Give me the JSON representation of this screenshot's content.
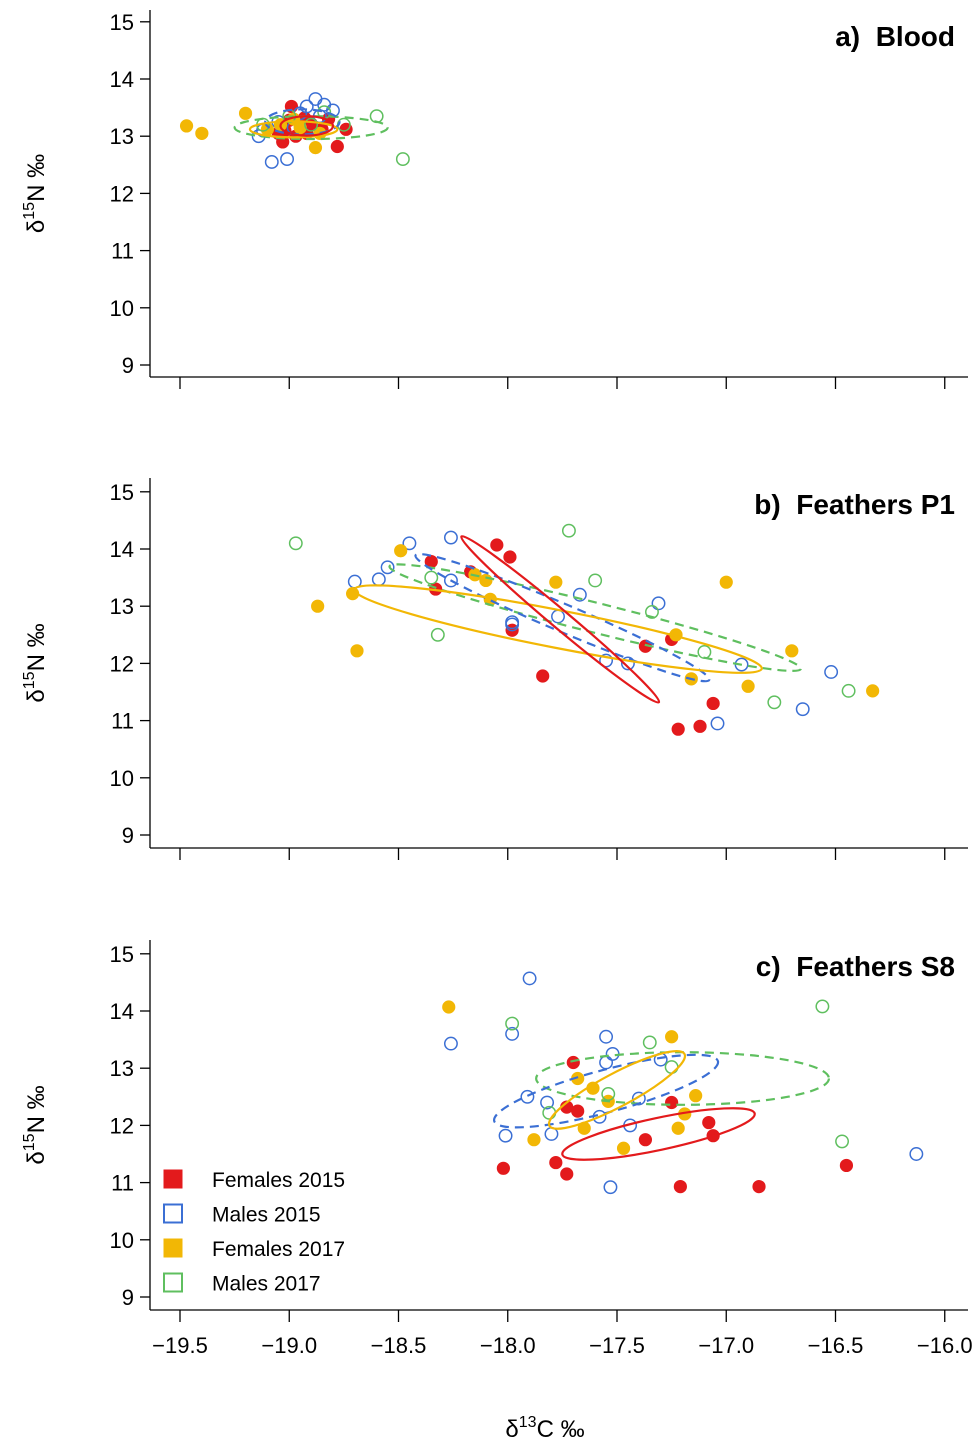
{
  "chart_data": [
    {
      "type": "scatter",
      "title": "a)  Blood",
      "ylabel": "δ15N ‰",
      "ylim": [
        8.8,
        15.3
      ],
      "xlim": [
        -19.63,
        -15.93
      ],
      "yticks": [
        "9",
        "10",
        "11",
        "12",
        "13",
        "14",
        "15"
      ],
      "series": [
        {
          "name": "Females 2015",
          "color": "#e31a1c",
          "style": "filled",
          "points": [
            [
              -18.99,
              13.52
            ],
            [
              -18.93,
              13.32
            ],
            [
              -18.95,
              13.2
            ],
            [
              -19.02,
              13.1
            ],
            [
              -19.05,
              13.05
            ],
            [
              -19.0,
              13.28
            ],
            [
              -18.92,
              13.05
            ],
            [
              -18.9,
              13.22
            ],
            [
              -18.85,
              13.12
            ],
            [
              -19.03,
              12.9
            ],
            [
              -18.78,
              12.82
            ],
            [
              -18.74,
              13.12
            ],
            [
              -18.97,
              13.0
            ],
            [
              -18.82,
              13.3
            ]
          ]
        },
        {
          "name": "Males 2015",
          "color": "#3b6fd4",
          "style": "open",
          "points": [
            [
              -18.88,
              13.65
            ],
            [
              -18.84,
              13.55
            ],
            [
              -18.92,
              13.52
            ],
            [
              -18.8,
              13.45
            ],
            [
              -18.95,
              13.4
            ],
            [
              -19.05,
              13.25
            ],
            [
              -19.12,
              13.1
            ],
            [
              -19.08,
              12.55
            ],
            [
              -19.01,
              12.6
            ],
            [
              -18.86,
              13.35
            ],
            [
              -19.14,
              13.0
            ],
            [
              -18.98,
              13.15
            ]
          ]
        },
        {
          "name": "Females 2017",
          "color": "#f2b705",
          "style": "filled",
          "points": [
            [
              -19.47,
              13.18
            ],
            [
              -19.4,
              13.05
            ],
            [
              -19.2,
              13.4
            ],
            [
              -19.1,
              13.12
            ],
            [
              -18.98,
              13.3
            ],
            [
              -18.88,
              12.8
            ],
            [
              -18.95,
              13.15
            ],
            [
              -18.86,
              13.05
            ],
            [
              -19.04,
              13.2
            ]
          ]
        },
        {
          "name": "Males 2017",
          "color": "#5fbf5f",
          "style": "open",
          "points": [
            [
              -18.6,
              13.35
            ],
            [
              -18.48,
              12.6
            ],
            [
              -18.75,
              13.2
            ],
            [
              -19.12,
              13.2
            ],
            [
              -19.0,
              13.35
            ],
            [
              -18.9,
              13.2
            ],
            [
              -18.84,
              13.42
            ]
          ]
        }
      ],
      "ellipses": [
        {
          "series": "Males 2017",
          "color": "#5fbf5f",
          "dashed": true,
          "cx": -18.9,
          "cy": 13.15,
          "rx": 0.35,
          "ry": 0.2,
          "angle": 0
        },
        {
          "series": "Males 2015",
          "color": "#3b6fd4",
          "dashed": true,
          "cx": -18.94,
          "cy": 13.25,
          "rx": 0.17,
          "ry": 0.22,
          "angle": 0
        },
        {
          "series": "Females 2017",
          "color": "#f2b705",
          "dashed": false,
          "cx": -18.98,
          "cy": 13.12,
          "rx": 0.2,
          "ry": 0.14,
          "angle": 0
        },
        {
          "series": "Females 2015",
          "color": "#e31a1c",
          "dashed": false,
          "cx": -18.92,
          "cy": 13.18,
          "rx": 0.12,
          "ry": 0.17,
          "angle": 0
        }
      ]
    },
    {
      "type": "scatter",
      "title": "b)  Feathers P1",
      "ylabel": "δ15N ‰",
      "ylim": [
        8.8,
        15.3
      ],
      "xlim": [
        -19.63,
        -15.93
      ],
      "yticks": [
        "9",
        "10",
        "11",
        "12",
        "13",
        "14",
        "15"
      ],
      "series": [
        {
          "name": "Females 2015",
          "color": "#e31a1c",
          "style": "filled",
          "points": [
            [
              -18.05,
              14.07
            ],
            [
              -17.99,
              13.86
            ],
            [
              -18.35,
              13.78
            ],
            [
              -18.17,
              13.6
            ],
            [
              -18.33,
              13.3
            ],
            [
              -17.98,
              12.58
            ],
            [
              -17.84,
              11.78
            ],
            [
              -17.37,
              12.3
            ],
            [
              -17.25,
              12.42
            ],
            [
              -17.06,
              11.3
            ],
            [
              -17.12,
              10.9
            ],
            [
              -17.22,
              10.85
            ]
          ]
        },
        {
          "name": "Males 2015",
          "color": "#3b6fd4",
          "style": "open",
          "points": [
            [
              -18.26,
              14.2
            ],
            [
              -18.45,
              14.1
            ],
            [
              -18.55,
              13.68
            ],
            [
              -18.7,
              13.43
            ],
            [
              -18.59,
              13.47
            ],
            [
              -18.26,
              13.45
            ],
            [
              -17.98,
              12.68
            ],
            [
              -17.98,
              12.72
            ],
            [
              -17.77,
              12.82
            ],
            [
              -17.67,
              13.2
            ],
            [
              -17.31,
              13.05
            ],
            [
              -17.55,
              12.05
            ],
            [
              -17.45,
              12.0
            ],
            [
              -16.93,
              11.98
            ],
            [
              -17.04,
              10.95
            ],
            [
              -16.52,
              11.85
            ],
            [
              -16.65,
              11.2
            ]
          ]
        },
        {
          "name": "Females 2017",
          "color": "#f2b705",
          "style": "filled",
          "points": [
            [
              -18.49,
              13.97
            ],
            [
              -18.87,
              13.0
            ],
            [
              -18.71,
              13.22
            ],
            [
              -18.69,
              12.22
            ],
            [
              -18.15,
              13.55
            ],
            [
              -18.1,
              13.45
            ],
            [
              -18.08,
              13.12
            ],
            [
              -17.78,
              13.42
            ],
            [
              -17.23,
              12.5
            ],
            [
              -17.16,
              11.73
            ],
            [
              -17.0,
              13.42
            ],
            [
              -16.9,
              11.6
            ],
            [
              -16.7,
              12.22
            ],
            [
              -16.33,
              11.52
            ]
          ]
        },
        {
          "name": "Males 2017",
          "color": "#5fbf5f",
          "style": "open",
          "points": [
            [
              -18.97,
              14.1
            ],
            [
              -17.72,
              14.32
            ],
            [
              -17.6,
              13.45
            ],
            [
              -17.34,
              12.9
            ],
            [
              -18.35,
              13.5
            ],
            [
              -18.32,
              12.5
            ],
            [
              -16.78,
              11.32
            ],
            [
              -16.44,
              11.52
            ],
            [
              -17.1,
              12.2
            ]
          ]
        }
      ],
      "ellipses": [
        {
          "series": "Males 2017",
          "color": "#5fbf5f",
          "dashed": true,
          "cx": -17.6,
          "cy": 12.8,
          "rx": 0.97,
          "ry": 0.26,
          "angle": 14
        },
        {
          "series": "Males 2015",
          "color": "#3b6fd4",
          "dashed": true,
          "cx": -17.75,
          "cy": 12.8,
          "rx": 0.73,
          "ry": 0.24,
          "angle": 23
        },
        {
          "series": "Females 2017",
          "color": "#f2b705",
          "dashed": false,
          "cx": -17.77,
          "cy": 12.6,
          "rx": 0.95,
          "ry": 0.33,
          "angle": 11
        },
        {
          "series": "Females 2015",
          "color": "#e31a1c",
          "dashed": false,
          "cx": -17.76,
          "cy": 12.77,
          "rx": 0.59,
          "ry": 0.16,
          "angle": 40
        }
      ]
    },
    {
      "type": "scatter",
      "title": "c)  Feathers S8",
      "ylabel": "δ15N ‰",
      "xlabel": "δ13C ‰",
      "ylim": [
        8.8,
        15.3
      ],
      "xlim": [
        -19.63,
        -15.93
      ],
      "xticks": [
        "−19.5",
        "−19.0",
        "−18.5",
        "−18.0",
        "−17.5",
        "−17.0",
        "−16.5",
        "−16.0"
      ],
      "yticks": [
        "9",
        "10",
        "11",
        "12",
        "13",
        "14",
        "15"
      ],
      "series": [
        {
          "name": "Females 2015",
          "color": "#e31a1c",
          "style": "filled",
          "points": [
            [
              -17.7,
              13.1
            ],
            [
              -17.73,
              12.32
            ],
            [
              -17.68,
              12.25
            ],
            [
              -17.78,
              11.35
            ],
            [
              -17.73,
              11.15
            ],
            [
              -17.37,
              11.75
            ],
            [
              -17.25,
              12.4
            ],
            [
              -17.08,
              12.05
            ],
            [
              -17.06,
              11.82
            ],
            [
              -16.85,
              10.93
            ],
            [
              -17.21,
              10.93
            ],
            [
              -18.02,
              11.25
            ],
            [
              -16.45,
              11.3
            ]
          ]
        },
        {
          "name": "Males 2015",
          "color": "#3b6fd4",
          "style": "open",
          "points": [
            [
              -17.9,
              14.57
            ],
            [
              -17.98,
              13.6
            ],
            [
              -18.26,
              13.43
            ],
            [
              -17.55,
              13.55
            ],
            [
              -17.52,
              13.25
            ],
            [
              -17.55,
              13.1
            ],
            [
              -17.3,
              13.15
            ],
            [
              -17.91,
              12.5
            ],
            [
              -17.82,
              12.4
            ],
            [
              -17.58,
              12.15
            ],
            [
              -17.4,
              12.47
            ],
            [
              -17.44,
              12.0
            ],
            [
              -17.8,
              11.85
            ],
            [
              -18.01,
              11.82
            ],
            [
              -17.53,
              10.92
            ],
            [
              -16.13,
              11.5
            ]
          ]
        },
        {
          "name": "Females 2017",
          "color": "#f2b705",
          "style": "filled",
          "points": [
            [
              -18.27,
              14.07
            ],
            [
              -17.25,
              13.55
            ],
            [
              -17.68,
              12.82
            ],
            [
              -17.61,
              12.65
            ],
            [
              -17.54,
              12.42
            ],
            [
              -17.65,
              11.95
            ],
            [
              -17.47,
              11.6
            ],
            [
              -17.88,
              11.75
            ],
            [
              -17.22,
              11.95
            ],
            [
              -17.14,
              12.52
            ],
            [
              -17.19,
              12.2
            ]
          ]
        },
        {
          "name": "Males 2017",
          "color": "#5fbf5f",
          "style": "open",
          "points": [
            [
              -17.98,
              13.78
            ],
            [
              -17.35,
              13.45
            ],
            [
              -17.25,
              13.02
            ],
            [
              -17.54,
              12.55
            ],
            [
              -17.81,
              12.22
            ],
            [
              -16.56,
              14.08
            ],
            [
              -16.47,
              11.72
            ]
          ]
        }
      ],
      "ellipses": [
        {
          "series": "Males 2017",
          "color": "#5fbf5f",
          "dashed": true,
          "cx": -17.2,
          "cy": 12.82,
          "rx": 0.67,
          "ry": 0.46,
          "angle": 0
        },
        {
          "series": "Males 2015",
          "color": "#3b6fd4",
          "dashed": true,
          "cx": -17.55,
          "cy": 12.6,
          "rx": 0.53,
          "ry": 0.37,
          "angle": -15
        },
        {
          "series": "Females 2017",
          "color": "#f2b705",
          "dashed": false,
          "cx": -17.5,
          "cy": 12.62,
          "rx": 0.35,
          "ry": 0.29,
          "angle": -28
        },
        {
          "series": "Females 2015",
          "color": "#e31a1c",
          "dashed": false,
          "cx": -17.31,
          "cy": 11.85,
          "rx": 0.45,
          "ry": 0.28,
          "angle": -12
        }
      ]
    }
  ],
  "legend": {
    "placement": "bottom-left of panel c",
    "items": [
      {
        "label": "Females 2015",
        "color": "#e31a1c",
        "style": "filled"
      },
      {
        "label": "Males 2015",
        "color": "#3b6fd4",
        "style": "open"
      },
      {
        "label": "Females 2017",
        "color": "#f2b705",
        "style": "filled"
      },
      {
        "label": "Males 2017",
        "color": "#5fbf5f",
        "style": "open"
      }
    ]
  }
}
